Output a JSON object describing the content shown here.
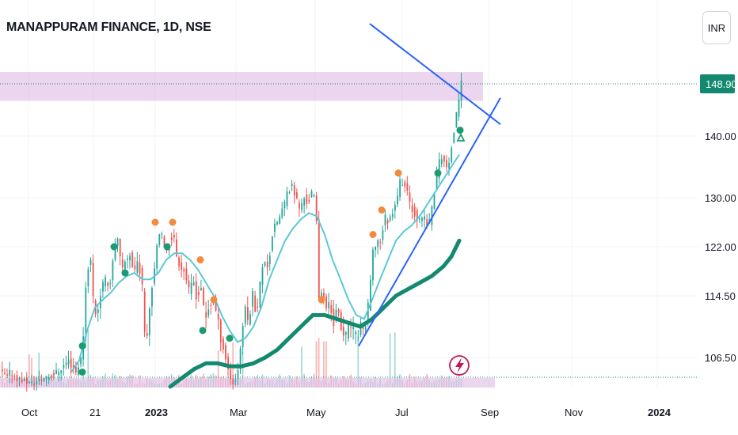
{
  "header": {
    "title": "MANAPPURAM FINANCE, 1D, NSE",
    "currency_button": "INR"
  },
  "chart_data": {
    "type": "candlestick",
    "symbol": "MANAPPURAM FINANCE",
    "interval": "1D",
    "exchange": "NSE",
    "currency": "INR",
    "last_price": "148.90",
    "colors": {
      "up": "#26a69a",
      "down": "#ef5350",
      "ma_fast": "#5bc8d6",
      "ma_slow": "#138a6f",
      "trendline": "#2962ff",
      "zone": "#e1bee7",
      "signal_sell": "#f28a3f",
      "signal_buy": "#1a9b73",
      "price_tag": "#138a6f"
    },
    "y_axis": {
      "ticks": [
        "148.90",
        "140.00",
        "130.00",
        "122.00",
        "114.50",
        "106.50"
      ],
      "range": [
        100,
        157
      ]
    },
    "x_axis": {
      "labels": [
        {
          "text": "Oct",
          "bold": false
        },
        {
          "text": "21",
          "bold": false
        },
        {
          "text": "2023",
          "bold": true
        },
        {
          "text": "Mar",
          "bold": false
        },
        {
          "text": "May",
          "bold": false
        },
        {
          "text": "Jul",
          "bold": false
        },
        {
          "text": "Sep",
          "bold": false
        },
        {
          "text": "Nov",
          "bold": false
        },
        {
          "text": "2024",
          "bold": true
        }
      ]
    },
    "price_path": [
      [
        0,
        104
      ],
      [
        8,
        103
      ],
      [
        12,
        104
      ],
      [
        20,
        103
      ],
      [
        40,
        102
      ],
      [
        55,
        103
      ],
      [
        72,
        104
      ],
      [
        85,
        106
      ],
      [
        95,
        104
      ],
      [
        103,
        107
      ],
      [
        108,
        117
      ],
      [
        113,
        121
      ],
      [
        118,
        112
      ],
      [
        123,
        113
      ],
      [
        128,
        116
      ],
      [
        133,
        117
      ],
      [
        138,
        116
      ],
      [
        143,
        122
      ],
      [
        148,
        123
      ],
      [
        153,
        118
      ],
      [
        158,
        120
      ],
      [
        163,
        121
      ],
      [
        168,
        118
      ],
      [
        173,
        120
      ],
      [
        178,
        117
      ],
      [
        183,
        108
      ],
      [
        188,
        113
      ],
      [
        193,
        118
      ],
      [
        198,
        123
      ],
      [
        203,
        124
      ],
      [
        208,
        121
      ],
      [
        213,
        123
      ],
      [
        218,
        124
      ],
      [
        223,
        120
      ],
      [
        228,
        119
      ],
      [
        233,
        118
      ],
      [
        238,
        115
      ],
      [
        243,
        117
      ],
      [
        248,
        114
      ],
      [
        253,
        116
      ],
      [
        258,
        111
      ],
      [
        263,
        113
      ],
      [
        268,
        114
      ],
      [
        273,
        112
      ],
      [
        278,
        109
      ],
      [
        283,
        107
      ],
      [
        288,
        104
      ],
      [
        293,
        102
      ],
      [
        298,
        103
      ],
      [
        303,
        108
      ],
      [
        308,
        113
      ],
      [
        313,
        111
      ],
      [
        318,
        115
      ],
      [
        323,
        112
      ],
      [
        328,
        117
      ],
      [
        333,
        120
      ],
      [
        338,
        119
      ],
      [
        343,
        124
      ],
      [
        348,
        126
      ],
      [
        353,
        127
      ],
      [
        358,
        129
      ],
      [
        363,
        131
      ],
      [
        368,
        132
      ],
      [
        373,
        130
      ],
      [
        378,
        128
      ],
      [
        383,
        130
      ],
      [
        388,
        129
      ],
      [
        393,
        131
      ],
      [
        398,
        129
      ],
      [
        402,
        114
      ],
      [
        406,
        116
      ],
      [
        410,
        112
      ],
      [
        415,
        114
      ],
      [
        420,
        111
      ],
      [
        425,
        113
      ],
      [
        430,
        110
      ],
      [
        435,
        109
      ],
      [
        440,
        111
      ],
      [
        445,
        110
      ],
      [
        450,
        109
      ],
      [
        455,
        111
      ],
      [
        460,
        110
      ],
      [
        465,
        114
      ],
      [
        470,
        121
      ],
      [
        475,
        123
      ],
      [
        480,
        123
      ],
      [
        485,
        127
      ],
      [
        490,
        126
      ],
      [
        495,
        128
      ],
      [
        500,
        130
      ],
      [
        505,
        133
      ],
      [
        510,
        132
      ],
      [
        515,
        130
      ],
      [
        520,
        128
      ],
      [
        525,
        127
      ],
      [
        530,
        126
      ],
      [
        535,
        127
      ],
      [
        540,
        125
      ],
      [
        545,
        129
      ],
      [
        550,
        133
      ],
      [
        555,
        137
      ],
      [
        560,
        136
      ],
      [
        565,
        134
      ],
      [
        570,
        139
      ],
      [
        575,
        143
      ],
      [
        578,
        146
      ],
      [
        581,
        149
      ]
    ],
    "ma_fast": [
      [
        90,
        104
      ],
      [
        100,
        106
      ],
      [
        110,
        110
      ],
      [
        120,
        113
      ],
      [
        130,
        114
      ],
      [
        140,
        115
      ],
      [
        150,
        116.5
      ],
      [
        160,
        117.5
      ],
      [
        170,
        118
      ],
      [
        180,
        117
      ],
      [
        190,
        117
      ],
      [
        200,
        118
      ],
      [
        210,
        120
      ],
      [
        220,
        121
      ],
      [
        230,
        121
      ],
      [
        240,
        120
      ],
      [
        250,
        118.5
      ],
      [
        260,
        116.5
      ],
      [
        270,
        114.5
      ],
      [
        280,
        112
      ],
      [
        290,
        110
      ],
      [
        300,
        108.5
      ],
      [
        310,
        109
      ],
      [
        320,
        110.5
      ],
      [
        330,
        113
      ],
      [
        340,
        117
      ],
      [
        350,
        120
      ],
      [
        360,
        123
      ],
      [
        370,
        125
      ],
      [
        380,
        126.5
      ],
      [
        390,
        127.5
      ],
      [
        400,
        127
      ],
      [
        410,
        124
      ],
      [
        420,
        120
      ],
      [
        430,
        117
      ],
      [
        440,
        114
      ],
      [
        450,
        112
      ],
      [
        460,
        111.5
      ],
      [
        470,
        114
      ],
      [
        480,
        117
      ],
      [
        490,
        120
      ],
      [
        500,
        123
      ],
      [
        510,
        124.5
      ],
      [
        520,
        125.5
      ],
      [
        530,
        127
      ],
      [
        540,
        129
      ],
      [
        550,
        131
      ],
      [
        560,
        133
      ],
      [
        570,
        135
      ],
      [
        580,
        137
      ]
    ],
    "ma_slow": [
      [
        215,
        101.5
      ],
      [
        230,
        103
      ],
      [
        245,
        104.5
      ],
      [
        260,
        105.5
      ],
      [
        275,
        105.5
      ],
      [
        290,
        105
      ],
      [
        305,
        105
      ],
      [
        320,
        105.5
      ],
      [
        335,
        106.5
      ],
      [
        350,
        107.5
      ],
      [
        365,
        109
      ],
      [
        380,
        110.5
      ],
      [
        395,
        112
      ],
      [
        410,
        112
      ],
      [
        425,
        111.5
      ],
      [
        440,
        111
      ],
      [
        455,
        110.5
      ],
      [
        470,
        111.5
      ],
      [
        485,
        113
      ],
      [
        500,
        114.5
      ],
      [
        515,
        115.5
      ],
      [
        530,
        116.5
      ],
      [
        545,
        117.5
      ],
      [
        560,
        119
      ],
      [
        570,
        120.5
      ],
      [
        580,
        123
      ]
    ],
    "trendlines": [
      {
        "from": [
          467,
          159.5
        ],
        "to": [
          632,
          142
        ]
      },
      {
        "from": [
          453,
          108
        ],
        "to": [
          632,
          146.5
        ]
      }
    ],
    "resistance_zone": {
      "x_start": 0,
      "x_end": 610,
      "y_high": 151,
      "y_low": 146
    },
    "support_zone": {
      "x_start": 0,
      "x_end": 625,
      "y_high": 102.5,
      "y_low": 100.5
    },
    "signals": [
      {
        "x": 144,
        "y": 122,
        "kind": "buy"
      },
      {
        "x": 158,
        "y": 118,
        "kind": "buy"
      },
      {
        "x": 196,
        "y": 126,
        "kind": "sell"
      },
      {
        "x": 211,
        "y": 122,
        "kind": "buy"
      },
      {
        "x": 218,
        "y": 126,
        "kind": "sell"
      },
      {
        "x": 253,
        "y": 120,
        "kind": "sell"
      },
      {
        "x": 256,
        "y": 110,
        "kind": "buy"
      },
      {
        "x": 270,
        "y": 114,
        "kind": "sell"
      },
      {
        "x": 290,
        "y": 109,
        "kind": "buy"
      },
      {
        "x": 406,
        "y": 114,
        "kind": "sell"
      },
      {
        "x": 471,
        "y": 124,
        "kind": "sell"
      },
      {
        "x": 482,
        "y": 128,
        "kind": "sell"
      },
      {
        "x": 503,
        "y": 134,
        "kind": "sell"
      },
      {
        "x": 553,
        "y": 134,
        "kind": "buy"
      },
      {
        "x": 581,
        "y": 141,
        "kind": "buy"
      },
      {
        "x": 104,
        "y": 108,
        "kind": "buy"
      },
      {
        "x": 104,
        "y": 104,
        "kind": "buy"
      }
    ],
    "gridlines": true,
    "legend": "none"
  }
}
